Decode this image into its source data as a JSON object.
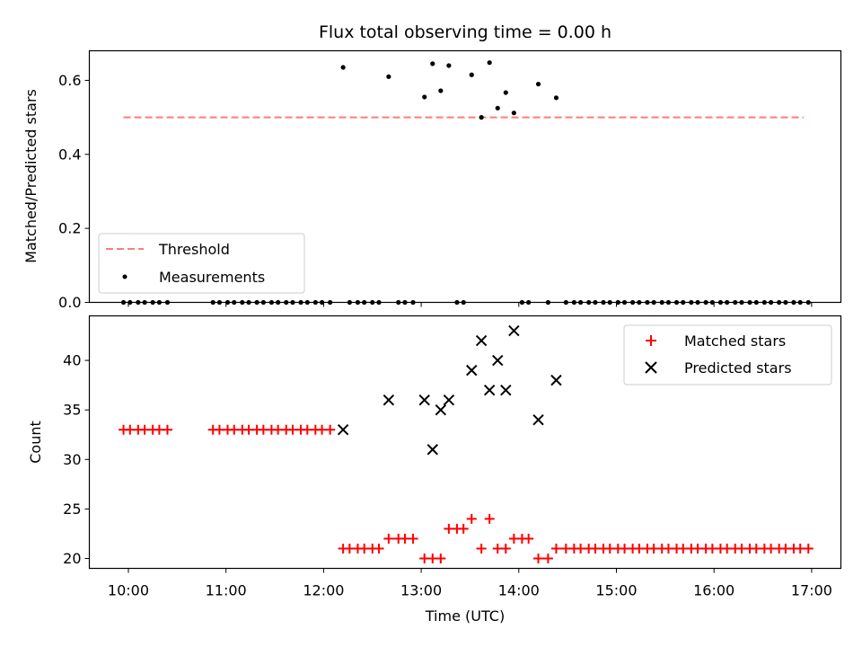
{
  "chart_data": [
    {
      "type": "scatter",
      "title": "Flux total observing time = 0.00 h",
      "xlabel": "",
      "ylabel": "Matched/Predicted stars",
      "xlim": [
        "09:36",
        "17:18"
      ],
      "ylim": [
        0,
        0.68
      ],
      "yticks": [
        "0.0",
        "0.2",
        "0.4",
        "0.6"
      ],
      "legend_position": "lower-left",
      "threshold": {
        "name": "Threshold",
        "value": 0.5,
        "x_range": [
          "09:57",
          "16:55"
        ],
        "color": "#ff7b7b",
        "style": "dashed"
      },
      "series": [
        {
          "name": "Measurements",
          "color": "#000000",
          "points": [
            [
              "09:57",
              0.0
            ],
            [
              "10:01",
              0.0
            ],
            [
              "10:06",
              0.0
            ],
            [
              "10:10",
              0.0
            ],
            [
              "10:15",
              0.0
            ],
            [
              "10:19",
              0.0
            ],
            [
              "10:24",
              0.0
            ],
            [
              "10:52",
              0.0
            ],
            [
              "10:56",
              0.0
            ],
            [
              "11:01",
              0.0
            ],
            [
              "11:05",
              0.0
            ],
            [
              "11:10",
              0.0
            ],
            [
              "11:14",
              0.0
            ],
            [
              "11:19",
              0.0
            ],
            [
              "11:23",
              0.0
            ],
            [
              "11:28",
              0.0
            ],
            [
              "11:32",
              0.0
            ],
            [
              "11:37",
              0.0
            ],
            [
              "11:41",
              0.0
            ],
            [
              "11:46",
              0.0
            ],
            [
              "11:50",
              0.0
            ],
            [
              "11:55",
              0.0
            ],
            [
              "11:59",
              0.0
            ],
            [
              "12:04",
              0.0
            ],
            [
              "12:12",
              0.635
            ],
            [
              "12:16",
              0.0
            ],
            [
              "12:21",
              0.0
            ],
            [
              "12:25",
              0.0
            ],
            [
              "12:30",
              0.0
            ],
            [
              "12:34",
              0.0
            ],
            [
              "12:40",
              0.61
            ],
            [
              "12:46",
              0.0
            ],
            [
              "12:50",
              0.0
            ],
            [
              "12:55",
              0.0
            ],
            [
              "13:02",
              0.555
            ],
            [
              "13:07",
              0.645
            ],
            [
              "13:12",
              0.572
            ],
            [
              "13:17",
              0.64
            ],
            [
              "13:22",
              0.0
            ],
            [
              "13:26",
              0.0
            ],
            [
              "13:31",
              0.615
            ],
            [
              "13:37",
              0.5
            ],
            [
              "13:42",
              0.648
            ],
            [
              "13:47",
              0.525
            ],
            [
              "13:52",
              0.567
            ],
            [
              "13:57",
              0.512
            ],
            [
              "14:02",
              0.0
            ],
            [
              "14:06",
              0.0
            ],
            [
              "14:12",
              0.59
            ],
            [
              "14:18",
              0.0
            ],
            [
              "14:23",
              0.553
            ],
            [
              "14:29",
              0.0
            ],
            [
              "14:34",
              0.0
            ],
            [
              "14:38",
              0.0
            ],
            [
              "14:43",
              0.0
            ],
            [
              "14:47",
              0.0
            ],
            [
              "14:52",
              0.0
            ],
            [
              "14:56",
              0.0
            ],
            [
              "15:01",
              0.0
            ],
            [
              "15:05",
              0.0
            ],
            [
              "15:10",
              0.0
            ],
            [
              "15:14",
              0.0
            ],
            [
              "15:19",
              0.0
            ],
            [
              "15:23",
              0.0
            ],
            [
              "15:28",
              0.0
            ],
            [
              "15:32",
              0.0
            ],
            [
              "15:37",
              0.0
            ],
            [
              "15:41",
              0.0
            ],
            [
              "15:46",
              0.0
            ],
            [
              "15:50",
              0.0
            ],
            [
              "15:55",
              0.0
            ],
            [
              "15:59",
              0.0
            ],
            [
              "16:04",
              0.0
            ],
            [
              "16:08",
              0.0
            ],
            [
              "16:13",
              0.0
            ],
            [
              "16:17",
              0.0
            ],
            [
              "16:22",
              0.0
            ],
            [
              "16:26",
              0.0
            ],
            [
              "16:31",
              0.0
            ],
            [
              "16:35",
              0.0
            ],
            [
              "16:40",
              0.0
            ],
            [
              "16:44",
              0.0
            ],
            [
              "16:49",
              0.0
            ],
            [
              "16:53",
              0.0
            ],
            [
              "16:58",
              0.0
            ]
          ]
        }
      ]
    },
    {
      "type": "scatter",
      "title": "",
      "xlabel": "Time (UTC)",
      "ylabel": "Count",
      "xlim": [
        "09:36",
        "17:18"
      ],
      "ylim": [
        19,
        44.5
      ],
      "yticks": [
        "20",
        "25",
        "30",
        "35",
        "40"
      ],
      "xticks": [
        "10:00",
        "11:00",
        "12:00",
        "13:00",
        "14:00",
        "15:00",
        "16:00",
        "17:00"
      ],
      "legend_position": "upper-right",
      "series": [
        {
          "name": "Matched stars",
          "color": "#ff0000",
          "marker": "plus",
          "points": [
            [
              "09:57",
              33
            ],
            [
              "10:01",
              33
            ],
            [
              "10:06",
              33
            ],
            [
              "10:10",
              33
            ],
            [
              "10:15",
              33
            ],
            [
              "10:19",
              33
            ],
            [
              "10:24",
              33
            ],
            [
              "10:52",
              33
            ],
            [
              "10:56",
              33
            ],
            [
              "11:01",
              33
            ],
            [
              "11:05",
              33
            ],
            [
              "11:10",
              33
            ],
            [
              "11:14",
              33
            ],
            [
              "11:19",
              33
            ],
            [
              "11:23",
              33
            ],
            [
              "11:28",
              33
            ],
            [
              "11:32",
              33
            ],
            [
              "11:37",
              33
            ],
            [
              "11:41",
              33
            ],
            [
              "11:46",
              33
            ],
            [
              "11:50",
              33
            ],
            [
              "11:55",
              33
            ],
            [
              "11:59",
              33
            ],
            [
              "12:04",
              33
            ],
            [
              "12:12",
              21
            ],
            [
              "12:16",
              21
            ],
            [
              "12:21",
              21
            ],
            [
              "12:25",
              21
            ],
            [
              "12:30",
              21
            ],
            [
              "12:34",
              21
            ],
            [
              "12:40",
              22
            ],
            [
              "12:46",
              22
            ],
            [
              "12:50",
              22
            ],
            [
              "12:55",
              22
            ],
            [
              "13:02",
              20
            ],
            [
              "13:07",
              20
            ],
            [
              "13:12",
              20
            ],
            [
              "13:17",
              23
            ],
            [
              "13:22",
              23
            ],
            [
              "13:26",
              23
            ],
            [
              "13:31",
              24
            ],
            [
              "13:37",
              21
            ],
            [
              "13:42",
              24
            ],
            [
              "13:47",
              21
            ],
            [
              "13:52",
              21
            ],
            [
              "13:57",
              22
            ],
            [
              "14:02",
              22
            ],
            [
              "14:06",
              22
            ],
            [
              "14:12",
              20
            ],
            [
              "14:18",
              20
            ],
            [
              "14:23",
              21
            ],
            [
              "14:29",
              21
            ],
            [
              "14:34",
              21
            ],
            [
              "14:38",
              21
            ],
            [
              "14:43",
              21
            ],
            [
              "14:47",
              21
            ],
            [
              "14:52",
              21
            ],
            [
              "14:56",
              21
            ],
            [
              "15:01",
              21
            ],
            [
              "15:05",
              21
            ],
            [
              "15:10",
              21
            ],
            [
              "15:14",
              21
            ],
            [
              "15:19",
              21
            ],
            [
              "15:23",
              21
            ],
            [
              "15:28",
              21
            ],
            [
              "15:32",
              21
            ],
            [
              "15:37",
              21
            ],
            [
              "15:41",
              21
            ],
            [
              "15:46",
              21
            ],
            [
              "15:50",
              21
            ],
            [
              "15:55",
              21
            ],
            [
              "15:59",
              21
            ],
            [
              "16:04",
              21
            ],
            [
              "16:08",
              21
            ],
            [
              "16:13",
              21
            ],
            [
              "16:17",
              21
            ],
            [
              "16:22",
              21
            ],
            [
              "16:26",
              21
            ],
            [
              "16:31",
              21
            ],
            [
              "16:35",
              21
            ],
            [
              "16:40",
              21
            ],
            [
              "16:44",
              21
            ],
            [
              "16:49",
              21
            ],
            [
              "16:53",
              21
            ],
            [
              "16:58",
              21
            ]
          ]
        },
        {
          "name": "Predicted stars",
          "color": "#000000",
          "marker": "x",
          "points": [
            [
              "12:12",
              33
            ],
            [
              "12:40",
              36
            ],
            [
              "13:02",
              36
            ],
            [
              "13:07",
              31
            ],
            [
              "13:12",
              35
            ],
            [
              "13:17",
              36
            ],
            [
              "13:31",
              39
            ],
            [
              "13:37",
              42
            ],
            [
              "13:42",
              37
            ],
            [
              "13:47",
              40
            ],
            [
              "13:52",
              37
            ],
            [
              "13:57",
              43
            ],
            [
              "14:12",
              34
            ],
            [
              "14:23",
              38
            ]
          ]
        }
      ]
    }
  ]
}
